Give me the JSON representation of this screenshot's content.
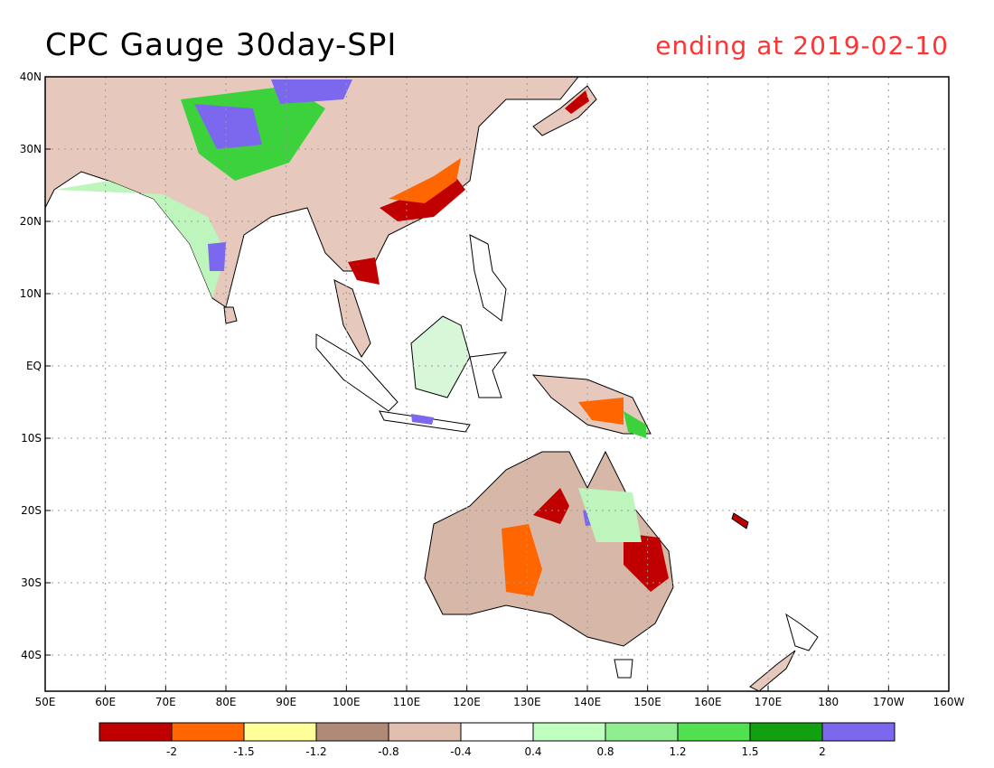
{
  "title": "CPC Gauge 30day-SPI",
  "subtitle": "ending at 2019-02-10",
  "map": {
    "lon_range": [
      50,
      200
    ],
    "lat_range": [
      -45,
      40
    ],
    "x_ticks": [
      "50E",
      "60E",
      "70E",
      "80E",
      "90E",
      "100E",
      "110E",
      "120E",
      "130E",
      "140E",
      "150E",
      "160E",
      "170E",
      "180",
      "170W",
      "160W"
    ],
    "y_ticks": [
      "40N",
      "30N",
      "20N",
      "10N",
      "EQ",
      "10S",
      "20S",
      "30S",
      "40S"
    ],
    "x_tick_lons": [
      50,
      60,
      70,
      80,
      90,
      100,
      110,
      120,
      130,
      140,
      150,
      160,
      170,
      180,
      190,
      200
    ],
    "y_tick_lats": [
      40,
      30,
      20,
      10,
      0,
      -10,
      -20,
      -30,
      -40
    ]
  },
  "legend": {
    "colors": [
      "#c00000",
      "#ff6600",
      "#ffff99",
      "#b08a78",
      "#e0bfb0",
      "#ffffff",
      "#c0ffc0",
      "#90ee90",
      "#50e050",
      "#10a010",
      "#7b68ee"
    ],
    "labels": [
      "-2",
      "-1.5",
      "-1.2",
      "-0.8",
      "-0.4",
      "0.4",
      "0.8",
      "1.2",
      "1.5",
      "2"
    ]
  }
}
